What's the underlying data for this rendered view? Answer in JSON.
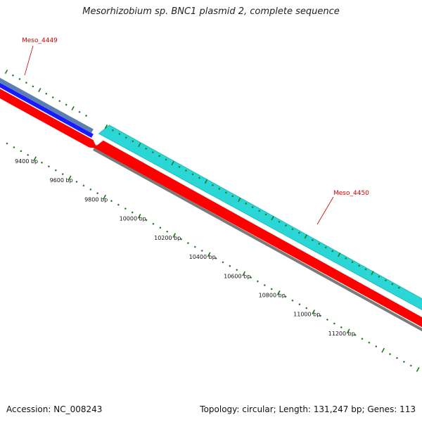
{
  "title": "Mesorhizobium sp. BNC1 plasmid 2, complete sequence",
  "footer": {
    "accession": "Accession: NC_008243",
    "summary": "Topology: circular; Length: 131,247 bp; Genes: 113"
  },
  "colors": {
    "backbone": "#7a7a7a",
    "gene_forward_top": "#5b7fb0",
    "gene_blue": "#1a1aff",
    "gene_red": "#ff0000",
    "gene_cyan": "#2ad6d6",
    "tick_green": "#1a7a1a",
    "label_red": "#d40000"
  },
  "gene_labels": [
    "Meso_4449",
    "Meso_4450"
  ],
  "tick_labels": [
    "9400 bp",
    "9600 bp",
    "9800 bp",
    "10000 bp",
    "10200 bp",
    "10400 bp",
    "10600 bp",
    "10800 bp",
    "11000 bp",
    "11200 bp"
  ]
}
